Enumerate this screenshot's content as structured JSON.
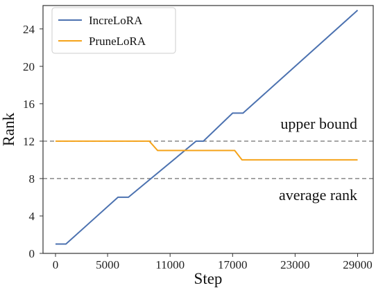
{
  "chart_data": {
    "type": "line",
    "title": "",
    "xlabel": "Step",
    "ylabel": "Rank",
    "xlim": [
      -1200,
      30500
    ],
    "ylim": [
      0,
      26.5
    ],
    "xticks": [
      0,
      5000,
      11000,
      17000,
      23000,
      29000
    ],
    "xtick_labels": [
      "0",
      "5000",
      "11000",
      "17000",
      "23000",
      "29000"
    ],
    "yticks": [
      0,
      4,
      8,
      12,
      16,
      20,
      24
    ],
    "ytick_labels": [
      "0",
      "4",
      "8",
      "12",
      "16",
      "20",
      "24"
    ],
    "grid": false,
    "legend_position": "top-left",
    "series": [
      {
        "name": "IncreLoRA",
        "color": "#4c72b0",
        "x": [
          0,
          1000,
          6000,
          7000,
          13500,
          14200,
          17000,
          18000,
          29000
        ],
        "y": [
          1,
          1,
          6,
          6,
          12,
          12,
          15,
          15,
          26
        ]
      },
      {
        "name": "PruneLoRA",
        "color": "#f5a31a",
        "x": [
          0,
          9000,
          9800,
          17200,
          17900,
          29000
        ],
        "y": [
          12,
          12,
          11,
          11,
          10,
          10
        ]
      }
    ],
    "reference_lines": [
      {
        "y": 12,
        "label": "upper bound",
        "color": "#888888"
      },
      {
        "y": 8,
        "label": "average rank",
        "color": "#888888"
      }
    ]
  }
}
